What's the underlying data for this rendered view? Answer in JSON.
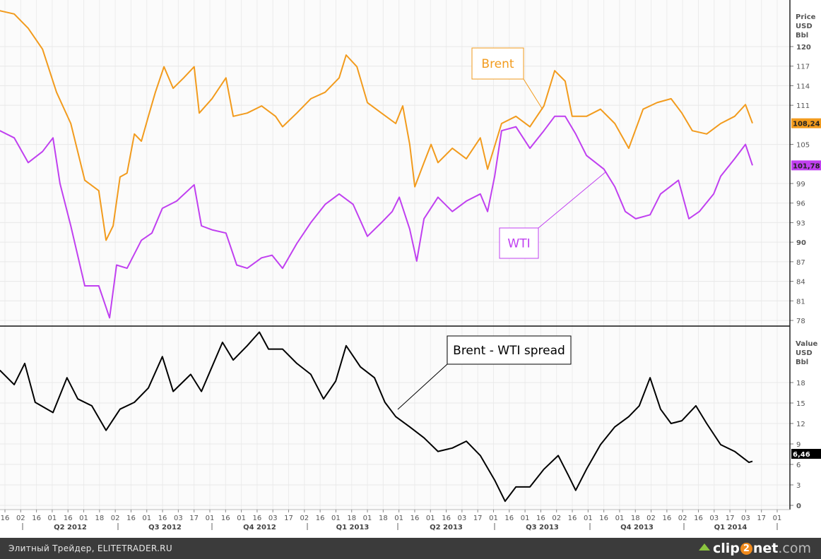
{
  "chart_data": [
    {
      "type": "line",
      "title": "",
      "panel": "top",
      "ylabel_lines": [
        "Price",
        "USD",
        "Bbl"
      ],
      "ylim": [
        77.5,
        126
      ],
      "yticks": [
        120,
        117,
        114,
        111,
        105,
        99,
        96,
        93,
        90,
        87,
        84,
        81,
        78
      ],
      "x_unit": "months since 2012-04-01",
      "grid": true,
      "series": [
        {
          "name": "Brent",
          "color": "#f29b1d",
          "last_value_label": "108,24",
          "points": [
            [
              -0.67,
              125.5
            ],
            [
              -0.22,
              125
            ],
            [
              0.22,
              122.8
            ],
            [
              0.67,
              119.6
            ],
            [
              1.11,
              113
            ],
            [
              1.56,
              108.2
            ],
            [
              2,
              99.5
            ],
            [
              2.44,
              97.9
            ],
            [
              2.67,
              90.3
            ],
            [
              2.89,
              92.5
            ],
            [
              3.11,
              100
            ],
            [
              3.33,
              100.6
            ],
            [
              3.56,
              106.6
            ],
            [
              3.78,
              105.5
            ],
            [
              4,
              109.3
            ],
            [
              4.22,
              113
            ],
            [
              4.49,
              116.9
            ],
            [
              4.78,
              113.6
            ],
            [
              5.11,
              115.2
            ],
            [
              5.44,
              116.9
            ],
            [
              5.6,
              109.8
            ],
            [
              6,
              112
            ],
            [
              6.44,
              115.2
            ],
            [
              6.67,
              109.3
            ],
            [
              7.11,
              109.8
            ],
            [
              7.56,
              110.9
            ],
            [
              8,
              109.3
            ],
            [
              8.22,
              107.7
            ],
            [
              8.67,
              109.8
            ],
            [
              9.11,
              112
            ],
            [
              9.56,
              113
            ],
            [
              10,
              115.2
            ],
            [
              10.22,
              118.7
            ],
            [
              10.56,
              116.9
            ],
            [
              10.89,
              111.4
            ],
            [
              11.33,
              109.8
            ],
            [
              11.78,
              108.2
            ],
            [
              12,
              110.9
            ],
            [
              12.22,
              105
            ],
            [
              12.38,
              98.5
            ],
            [
              12.67,
              102.2
            ],
            [
              12.89,
              105
            ],
            [
              13.11,
              102.2
            ],
            [
              13.56,
              104.4
            ],
            [
              14,
              102.8
            ],
            [
              14.44,
              106
            ],
            [
              14.67,
              101.2
            ],
            [
              15.11,
              108.2
            ],
            [
              15.56,
              109.3
            ],
            [
              16,
              107.7
            ],
            [
              16.44,
              110.9
            ],
            [
              16.78,
              116.3
            ],
            [
              17.11,
              114.7
            ],
            [
              17.33,
              109.3
            ],
            [
              17.78,
              109.3
            ],
            [
              18.22,
              110.4
            ],
            [
              18.67,
              108.2
            ],
            [
              19.11,
              104.4
            ],
            [
              19.56,
              110.4
            ],
            [
              20,
              111.4
            ],
            [
              20.44,
              112
            ],
            [
              20.78,
              109.8
            ],
            [
              21.11,
              107.1
            ],
            [
              21.56,
              106.6
            ],
            [
              22,
              108.2
            ],
            [
              22.44,
              109.3
            ],
            [
              22.78,
              111.1
            ],
            [
              23,
              108.24
            ]
          ]
        },
        {
          "name": "WTI",
          "color": "#c040f0",
          "last_value_label": "101,78",
          "points": [
            [
              -0.67,
              107.1
            ],
            [
              -0.22,
              106
            ],
            [
              0.22,
              102.2
            ],
            [
              0.67,
              103.9
            ],
            [
              1,
              106
            ],
            [
              1.22,
              99
            ],
            [
              1.56,
              92.5
            ],
            [
              2,
              83.3
            ],
            [
              2.44,
              83.3
            ],
            [
              2.78,
              78.4
            ],
            [
              3,
              86.5
            ],
            [
              3.33,
              86
            ],
            [
              3.78,
              90.3
            ],
            [
              4.11,
              91.4
            ],
            [
              4.44,
              95.2
            ],
            [
              4.89,
              96.3
            ],
            [
              5.44,
              98.8
            ],
            [
              5.67,
              92.5
            ],
            [
              6,
              91.9
            ],
            [
              6.44,
              91.4
            ],
            [
              6.78,
              86.5
            ],
            [
              7.11,
              86
            ],
            [
              7.56,
              87.6
            ],
            [
              7.89,
              88
            ],
            [
              8.22,
              86
            ],
            [
              8.67,
              89.8
            ],
            [
              9.11,
              93
            ],
            [
              9.56,
              95.8
            ],
            [
              10,
              97.4
            ],
            [
              10.44,
              95.8
            ],
            [
              10.89,
              90.9
            ],
            [
              11.33,
              93
            ],
            [
              11.67,
              94.7
            ],
            [
              11.89,
              96.9
            ],
            [
              12.22,
              92
            ],
            [
              12.44,
              87.1
            ],
            [
              12.67,
              93.6
            ],
            [
              13.11,
              96.9
            ],
            [
              13.56,
              94.7
            ],
            [
              14,
              96.3
            ],
            [
              14.44,
              97.4
            ],
            [
              14.67,
              94.7
            ],
            [
              14.89,
              100.1
            ],
            [
              15.11,
              107.1
            ],
            [
              15.56,
              107.7
            ],
            [
              16,
              104.4
            ],
            [
              16.44,
              107.1
            ],
            [
              16.78,
              109.3
            ],
            [
              17.11,
              109.3
            ],
            [
              17.44,
              106.6
            ],
            [
              17.78,
              103.3
            ],
            [
              18.33,
              101.2
            ],
            [
              18.67,
              98.5
            ],
            [
              19,
              94.7
            ],
            [
              19.33,
              93.6
            ],
            [
              19.78,
              94.2
            ],
            [
              20.11,
              97.4
            ],
            [
              20.67,
              99.5
            ],
            [
              21,
              93.6
            ],
            [
              21.33,
              94.7
            ],
            [
              21.78,
              97.4
            ],
            [
              22,
              100.1
            ],
            [
              22.44,
              102.8
            ],
            [
              22.78,
              105
            ],
            [
              23,
              101.78
            ]
          ]
        }
      ],
      "annotations": [
        {
          "label": "Brent",
          "series": "Brent"
        },
        {
          "label": "WTI",
          "series": "WTI"
        }
      ]
    },
    {
      "type": "line",
      "panel": "bottom",
      "ylabel_lines": [
        "Value",
        "USD",
        "Bbl"
      ],
      "ylim": [
        -0.7,
        26
      ],
      "yticks": [
        18,
        15,
        12,
        9,
        6,
        3,
        0
      ],
      "x_unit": "months since 2012-04-01",
      "grid": true,
      "series": [
        {
          "name": "Brent - WTI spread",
          "color": "#000000",
          "last_value_label": "6,46",
          "points": [
            [
              -0.67,
              19.8
            ],
            [
              -0.22,
              17.7
            ],
            [
              0.11,
              20.8
            ],
            [
              0.44,
              15.1
            ],
            [
              1,
              13.6
            ],
            [
              1.44,
              18.7
            ],
            [
              1.78,
              15.6
            ],
            [
              2.22,
              14.6
            ],
            [
              2.67,
              11
            ],
            [
              3.11,
              14.1
            ],
            [
              3.56,
              15.1
            ],
            [
              4,
              17.2
            ],
            [
              4.44,
              21.8
            ],
            [
              4.78,
              16.7
            ],
            [
              5.33,
              19.2
            ],
            [
              5.67,
              16.7
            ],
            [
              6,
              20.3
            ],
            [
              6.33,
              23.9
            ],
            [
              6.67,
              21.3
            ],
            [
              7.11,
              23.4
            ],
            [
              7.49,
              25.4
            ],
            [
              7.78,
              22.9
            ],
            [
              8.22,
              22.9
            ],
            [
              8.67,
              20.8
            ],
            [
              9.11,
              19.2
            ],
            [
              9.51,
              15.6
            ],
            [
              9.89,
              18.2
            ],
            [
              10.22,
              23.4
            ],
            [
              10.67,
              20.3
            ],
            [
              11.11,
              18.7
            ],
            [
              11.44,
              15.1
            ],
            [
              11.78,
              13
            ],
            [
              12.22,
              11.5
            ],
            [
              12.67,
              9.9
            ],
            [
              13.11,
              7.9
            ],
            [
              13.56,
              8.4
            ],
            [
              14,
              9.4
            ],
            [
              14.44,
              7.3
            ],
            [
              14.89,
              3.7
            ],
            [
              15.22,
              0.6
            ],
            [
              15.56,
              2.7
            ],
            [
              16,
              2.7
            ],
            [
              16.44,
              5.3
            ],
            [
              16.89,
              7.3
            ],
            [
              17.22,
              4.3
            ],
            [
              17.44,
              2.2
            ],
            [
              17.78,
              5.3
            ],
            [
              18.22,
              8.9
            ],
            [
              18.67,
              11.5
            ],
            [
              19.11,
              13
            ],
            [
              19.44,
              14.6
            ],
            [
              19.78,
              18.7
            ],
            [
              20.11,
              14.1
            ],
            [
              20.44,
              12
            ],
            [
              20.78,
              12.4
            ],
            [
              21.22,
              14.6
            ],
            [
              21.56,
              12
            ],
            [
              22,
              8.9
            ],
            [
              22.44,
              7.9
            ],
            [
              22.89,
              6.3
            ],
            [
              23,
              6.46
            ]
          ]
        }
      ],
      "annotations": [
        {
          "label": "Brent - WTI spread",
          "series": "Brent - WTI spread"
        }
      ]
    }
  ],
  "x_axis": {
    "day_ticks": [
      "16",
      "02",
      "16",
      "01",
      "16",
      "01",
      "18",
      "02",
      "16",
      "01",
      "16",
      "03",
      "17",
      "01",
      "16",
      "01",
      "16",
      "03",
      "17",
      "02",
      "16",
      "01",
      "18",
      "01",
      "18",
      "01",
      "16",
      "01",
      "16",
      "03",
      "17",
      "01",
      "16",
      "01",
      "16",
      "02",
      "16",
      "01",
      "16",
      "01",
      "18",
      "02",
      "16",
      "02",
      "16",
      "03",
      "17",
      "03",
      "17",
      "01"
    ],
    "quarters": [
      "Q2 2012",
      "Q3 2012",
      "Q4 2012",
      "Q1 2013",
      "Q2 2013",
      "Q3 2013",
      "Q4 2013",
      "Q1 2014"
    ]
  },
  "footer": {
    "source": "Элитный Трейдер, ELITETRADER.RU",
    "logo": "clip2net.com"
  }
}
